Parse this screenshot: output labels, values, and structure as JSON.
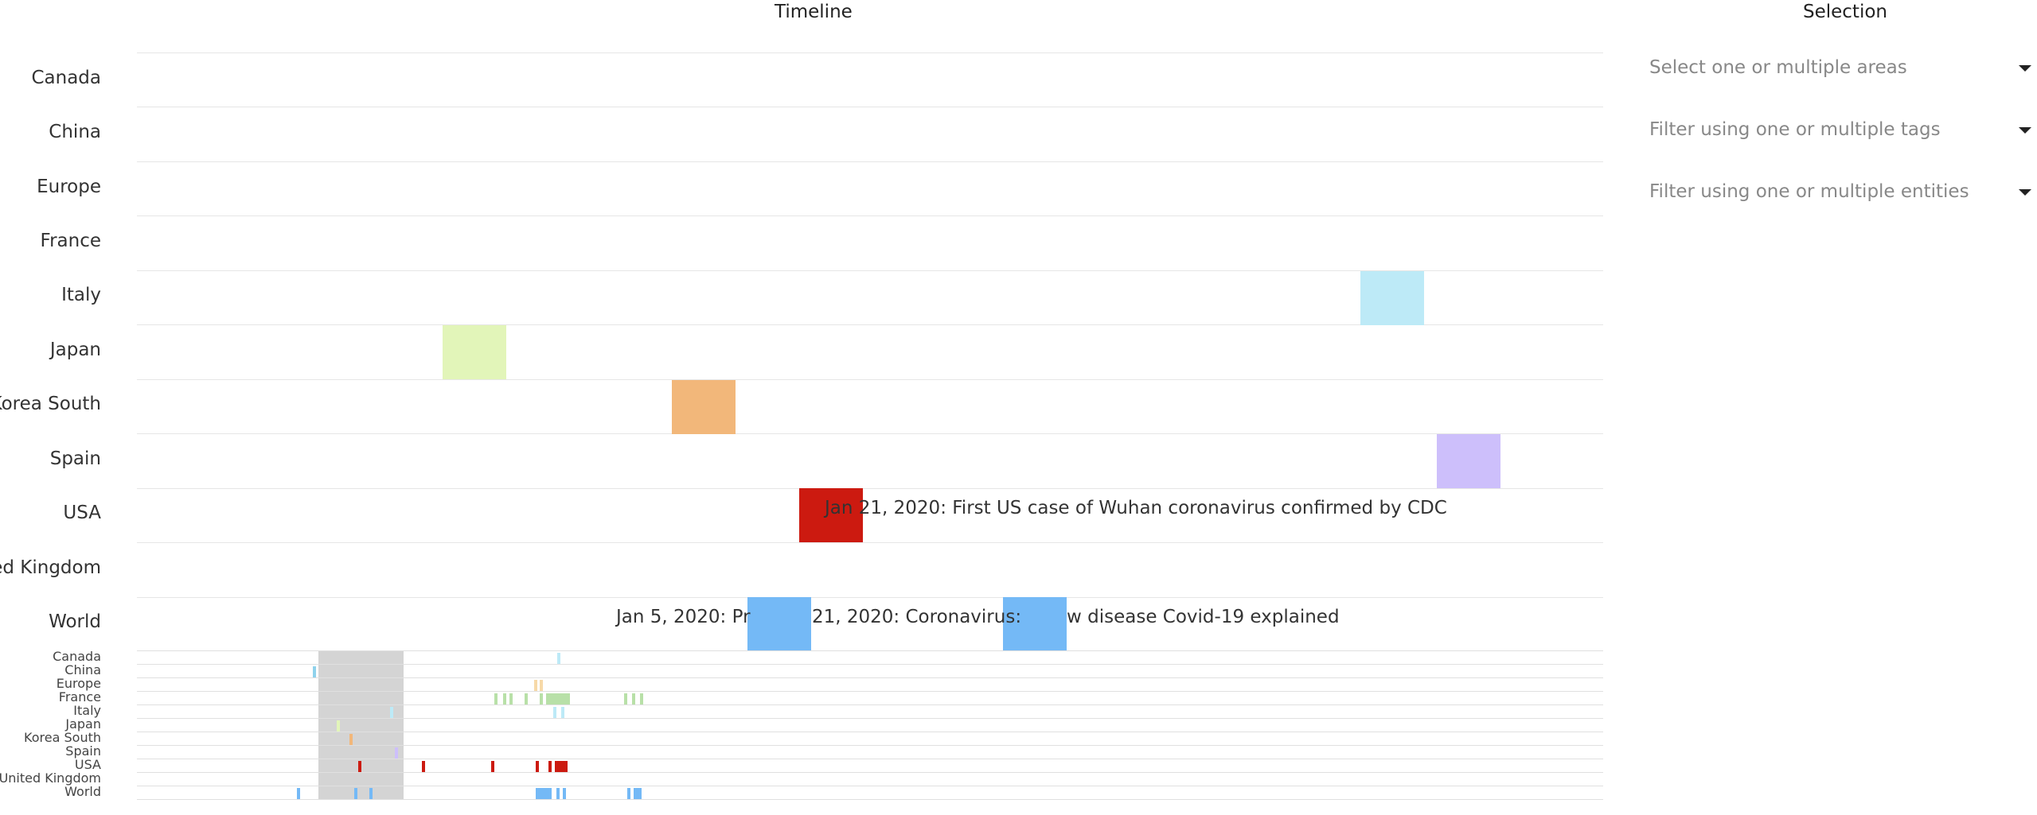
{
  "headings": {
    "timeline": "Timeline",
    "selection": "Selection"
  },
  "areas": [
    "Canada",
    "China",
    "Europe",
    "France",
    "Italy",
    "Japan",
    "Korea South",
    "Spain",
    "USA",
    "United Kingdom",
    "World"
  ],
  "selection": {
    "areas_placeholder": "Select one or multiple areas",
    "tags_placeholder": "Filter using one or multiple tags",
    "entities_placeholder": "Filter using one or multiple entities"
  },
  "events": {
    "usa": "Jan 21, 2020: First US case of Wuhan coronavirus confirmed by CDC",
    "world_1": "Jan 5, 2020: Pr",
    "world_2": "21, 2020: Coronavirus: ",
    "world_3": "w disease Covid-19 explained"
  },
  "colors": {
    "italy": "#bdeaf7",
    "japan": "#e2f5b9",
    "korea_south": "#f2b77a",
    "spain": "#cdbffb",
    "usa": "#cc1a10",
    "world": "#74b9f6",
    "china": "#8fd2ec",
    "france": "#b8e0a8",
    "brush": "#aaaaaa"
  }
}
